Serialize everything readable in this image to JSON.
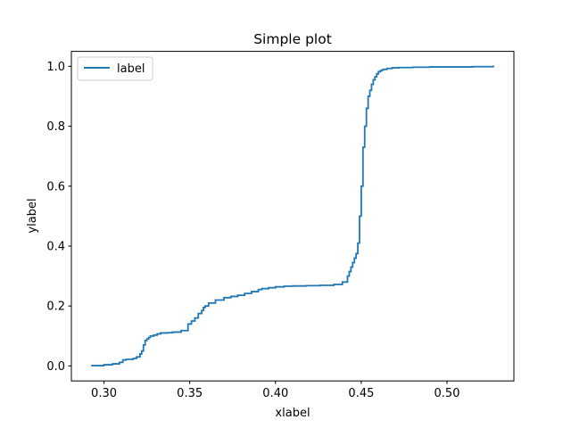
{
  "chart_data": {
    "type": "line",
    "title": "Simple plot",
    "xlabel": "xlabel",
    "ylabel": "ylabel",
    "xlim": [
      0.281,
      0.539
    ],
    "ylim": [
      -0.05,
      1.05
    ],
    "xticks": [
      {
        "value": 0.3,
        "label": "0.30"
      },
      {
        "value": 0.35,
        "label": "0.35"
      },
      {
        "value": 0.4,
        "label": "0.40"
      },
      {
        "value": 0.45,
        "label": "0.45"
      },
      {
        "value": 0.5,
        "label": "0.50"
      }
    ],
    "yticks": [
      {
        "value": 0.0,
        "label": "0.0"
      },
      {
        "value": 0.2,
        "label": "0.2"
      },
      {
        "value": 0.4,
        "label": "0.4"
      },
      {
        "value": 0.6,
        "label": "0.6"
      },
      {
        "value": 0.8,
        "label": "0.8"
      },
      {
        "value": 1.0,
        "label": "1.0"
      }
    ],
    "grid": false,
    "legend_position": "top-left",
    "series": [
      {
        "name": "label",
        "color": "#1f77b4",
        "step": true,
        "x": [
          0.293,
          0.3,
          0.305,
          0.309,
          0.311,
          0.313,
          0.317,
          0.319,
          0.321,
          0.322,
          0.323,
          0.324,
          0.325,
          0.326,
          0.327,
          0.329,
          0.331,
          0.333,
          0.337,
          0.34,
          0.345,
          0.349,
          0.351,
          0.353,
          0.355,
          0.357,
          0.358,
          0.359,
          0.361,
          0.365,
          0.37,
          0.374,
          0.378,
          0.382,
          0.386,
          0.39,
          0.392,
          0.396,
          0.4,
          0.405,
          0.41,
          0.418,
          0.426,
          0.434,
          0.439,
          0.442,
          0.443,
          0.444,
          0.445,
          0.446,
          0.447,
          0.448,
          0.449,
          0.45,
          0.451,
          0.452,
          0.453,
          0.454,
          0.455,
          0.456,
          0.457,
          0.458,
          0.459,
          0.46,
          0.461,
          0.462,
          0.463,
          0.465,
          0.468,
          0.472,
          0.48,
          0.49,
          0.5,
          0.515,
          0.527
        ],
        "y": [
          0.001,
          0.004,
          0.007,
          0.012,
          0.02,
          0.022,
          0.025,
          0.03,
          0.04,
          0.05,
          0.07,
          0.085,
          0.09,
          0.095,
          0.1,
          0.103,
          0.107,
          0.11,
          0.111,
          0.113,
          0.118,
          0.14,
          0.15,
          0.16,
          0.175,
          0.185,
          0.195,
          0.2,
          0.21,
          0.22,
          0.228,
          0.232,
          0.236,
          0.242,
          0.248,
          0.255,
          0.258,
          0.261,
          0.264,
          0.266,
          0.267,
          0.268,
          0.269,
          0.272,
          0.28,
          0.3,
          0.315,
          0.33,
          0.345,
          0.36,
          0.375,
          0.41,
          0.5,
          0.6,
          0.73,
          0.8,
          0.86,
          0.9,
          0.92,
          0.94,
          0.955,
          0.965,
          0.975,
          0.982,
          0.985,
          0.988,
          0.99,
          0.993,
          0.995,
          0.996,
          0.997,
          0.998,
          0.998,
          0.999,
          1.0
        ]
      }
    ]
  }
}
